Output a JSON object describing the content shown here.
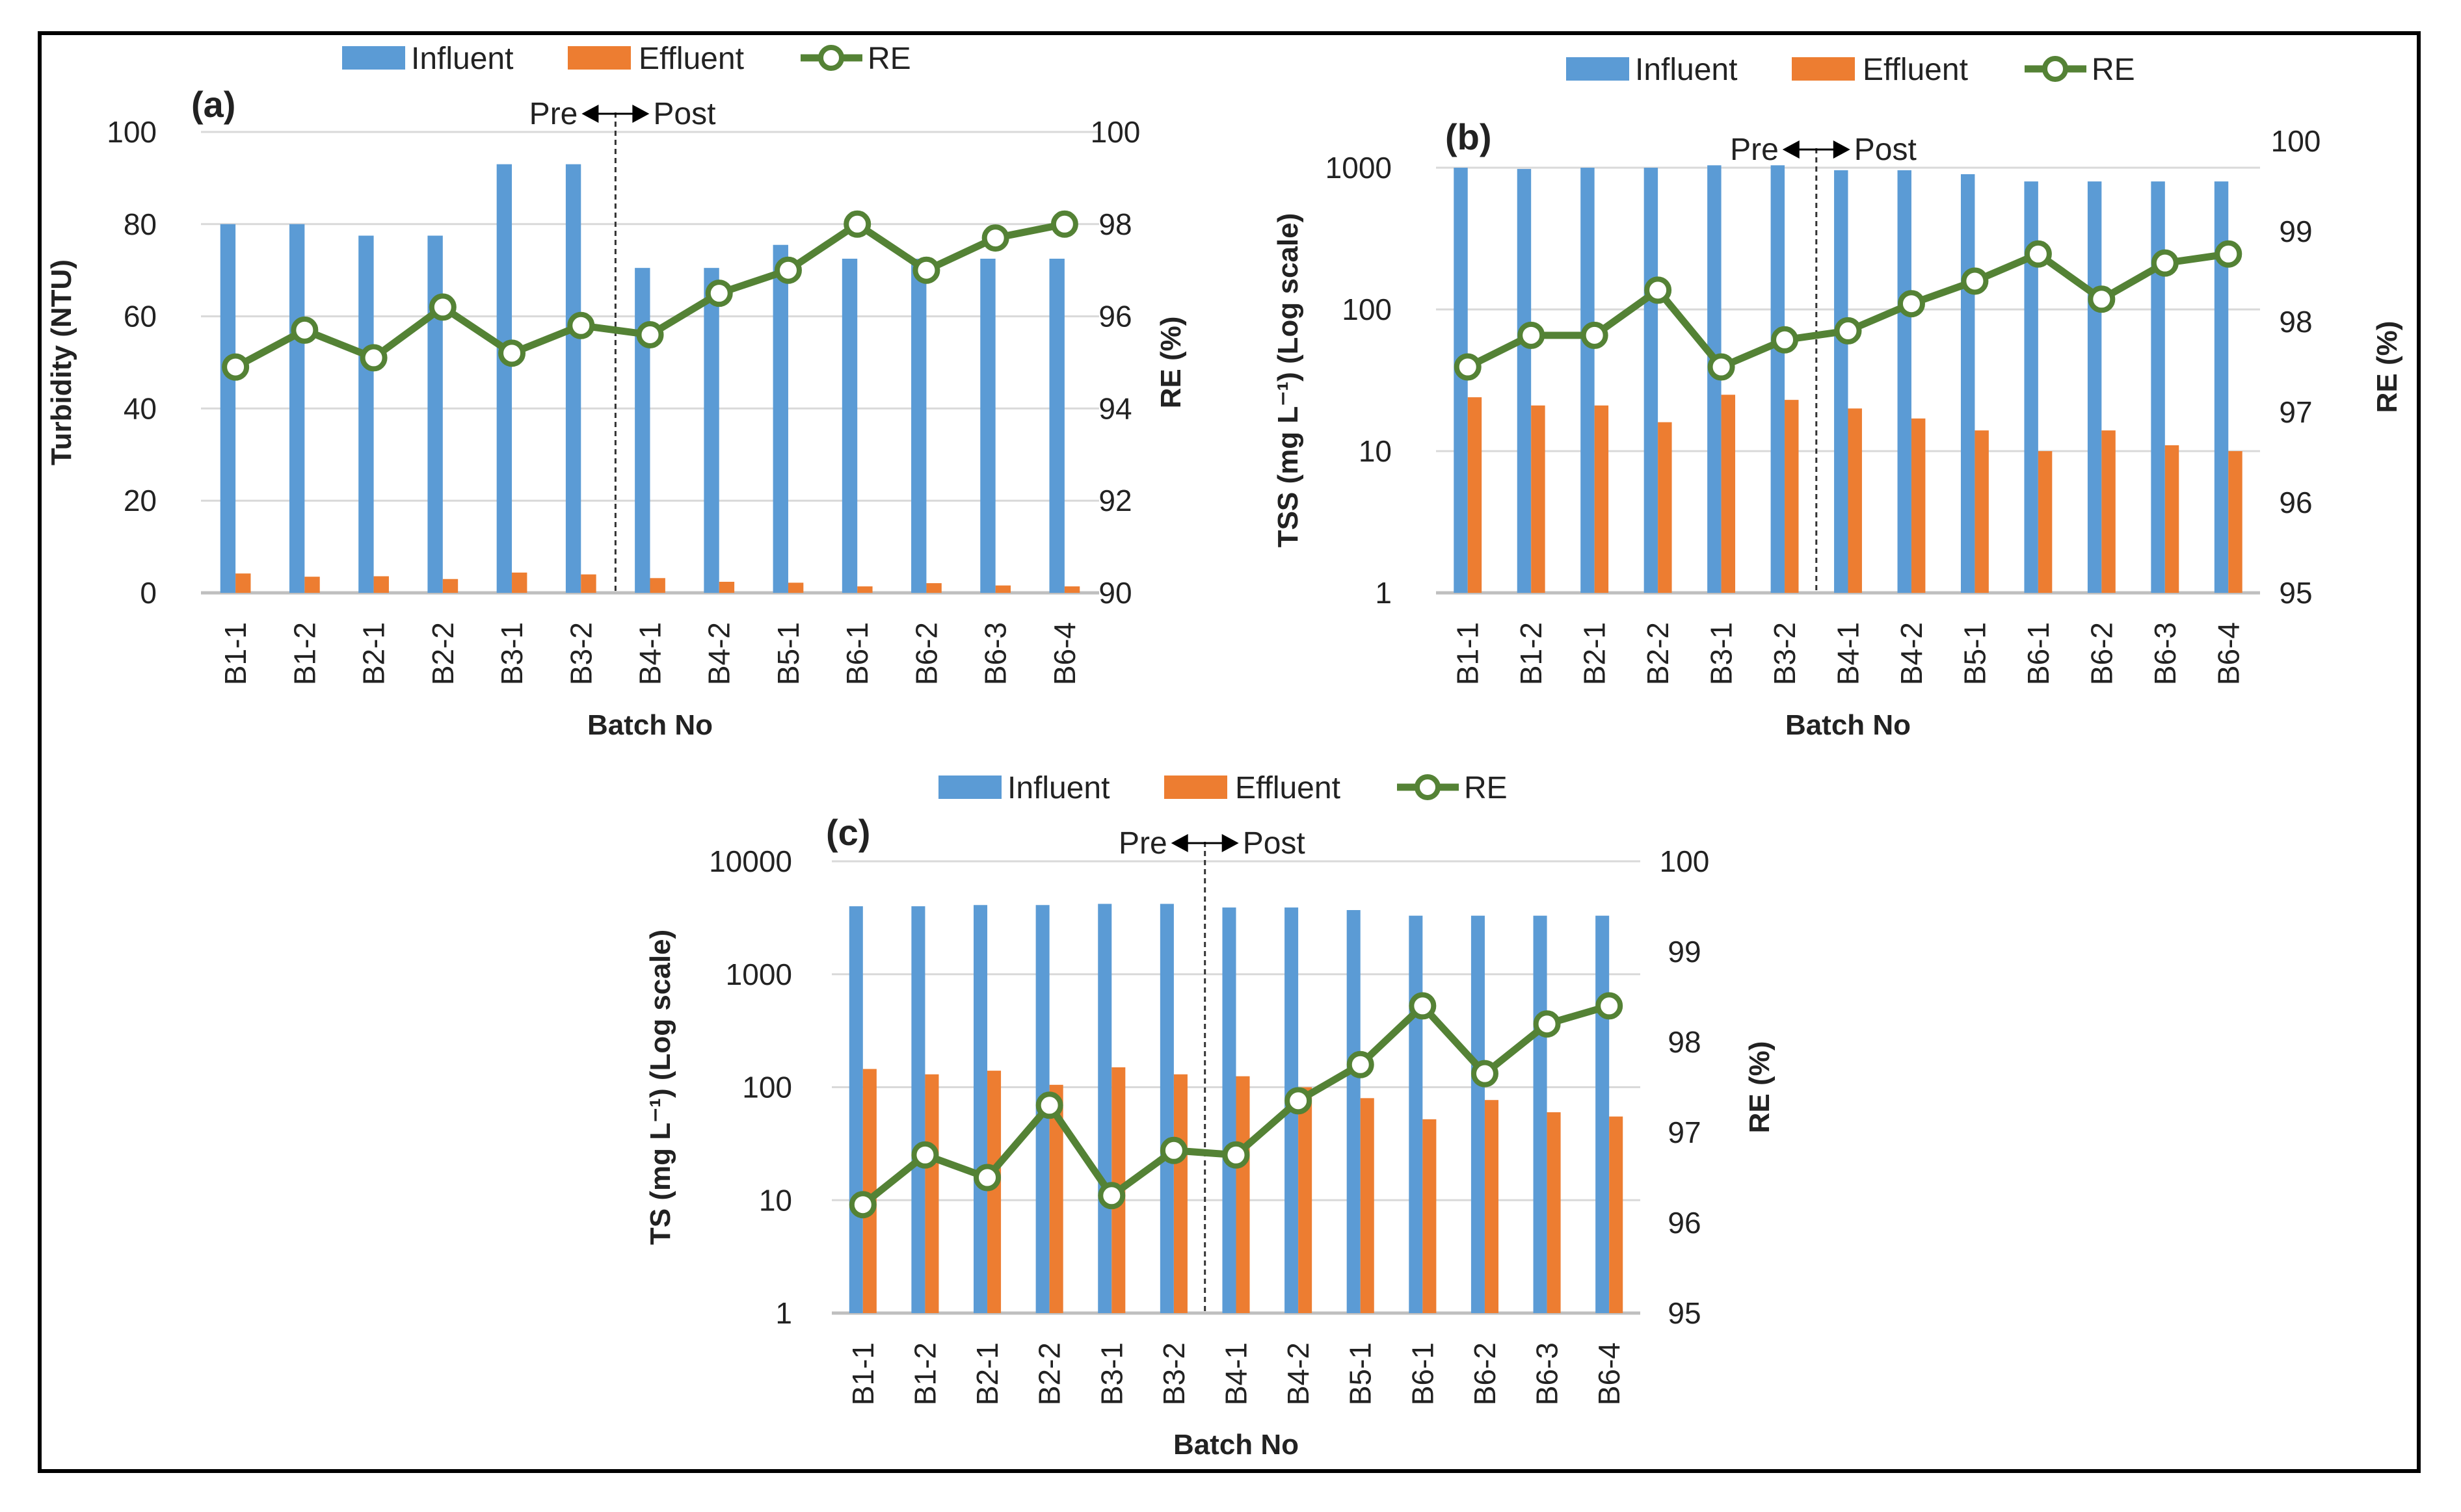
{
  "colors": {
    "influent": "#5B9BD5",
    "effluent": "#ED7D31",
    "re": "#548235",
    "grid": "#D9D9D9"
  },
  "legend": {
    "influent": "Influent",
    "effluent": "Effluent",
    "re": "RE"
  },
  "annotation": {
    "pre": "Pre",
    "post": "Post"
  },
  "chart_data": [
    {
      "type": "bar+line",
      "panel_label": "(a)",
      "categories": [
        "B1-1",
        "B1-2",
        "B2-1",
        "B2-2",
        "B3-1",
        "B3-2",
        "B4-1",
        "B4-2",
        "B5-1",
        "B6-1",
        "B6-2",
        "B6-3",
        "B6-4"
      ],
      "divider_after": "B3-2",
      "xlabel": "Batch No",
      "ylabel": "Turbidity (NTU)",
      "ylabel_right": "RE (%)",
      "yscale": "linear",
      "ylim": [
        0,
        100
      ],
      "yticks": [
        "0",
        "20",
        "40",
        "60",
        "80",
        "100"
      ],
      "ylim_right": [
        90,
        100
      ],
      "yticks_right": [
        "90",
        "92",
        "94",
        "96",
        "98",
        "100"
      ],
      "series": [
        {
          "name": "Influent",
          "axis": "left",
          "kind": "bar",
          "values": [
            80,
            80,
            77.5,
            77.5,
            93,
            93,
            70.5,
            70.5,
            75.5,
            72.5,
            72.5,
            72.5,
            72.5
          ]
        },
        {
          "name": "Effluent",
          "axis": "left",
          "kind": "bar",
          "values": [
            4.2,
            3.5,
            3.6,
            3.0,
            4.4,
            4.0,
            3.2,
            2.4,
            2.2,
            1.4,
            2.1,
            1.6,
            1.4
          ]
        },
        {
          "name": "RE",
          "axis": "right",
          "kind": "line",
          "values": [
            94.9,
            95.7,
            95.1,
            96.2,
            95.2,
            95.8,
            95.6,
            96.5,
            97.0,
            98.0,
            97.0,
            97.7,
            98.0
          ]
        }
      ]
    },
    {
      "type": "bar+line",
      "panel_label": "(b)",
      "categories": [
        "B1-1",
        "B1-2",
        "B2-1",
        "B2-2",
        "B3-1",
        "B3-2",
        "B4-1",
        "B4-2",
        "B5-1",
        "B6-1",
        "B6-2",
        "B6-3",
        "B6-4"
      ],
      "divider_after": "B3-2",
      "xlabel": "Batch No",
      "ylabel": "TSS (mg L⁻¹) (Log scale)",
      "ylabel_right": "RE (%)",
      "yscale": "log",
      "ylim": [
        1,
        1000
      ],
      "yticks": [
        "1",
        "10",
        "100",
        "1000"
      ],
      "ylim_right": [
        95,
        100
      ],
      "yticks_right": [
        "95",
        "96",
        "97",
        "98",
        "99",
        "100"
      ],
      "series": [
        {
          "name": "Influent",
          "axis": "left",
          "kind": "bar",
          "values": [
            1000,
            980,
            1000,
            1000,
            1040,
            1040,
            960,
            960,
            900,
            800,
            800,
            800,
            800
          ]
        },
        {
          "name": "Effluent",
          "axis": "left",
          "kind": "bar",
          "values": [
            24,
            21,
            21,
            16,
            25,
            23,
            20,
            17,
            14,
            10,
            14,
            11,
            10
          ]
        },
        {
          "name": "RE",
          "axis": "right",
          "kind": "line",
          "values": [
            97.5,
            97.85,
            97.85,
            98.35,
            97.5,
            97.8,
            97.9,
            98.2,
            98.45,
            98.75,
            98.25,
            98.65,
            98.75
          ]
        }
      ]
    },
    {
      "type": "bar+line",
      "panel_label": "(c)",
      "categories": [
        "B1-1",
        "B1-2",
        "B2-1",
        "B2-2",
        "B3-1",
        "B3-2",
        "B4-1",
        "B4-2",
        "B5-1",
        "B6-1",
        "B6-2",
        "B6-3",
        "B6-4"
      ],
      "divider_after": "B3-2",
      "xlabel": "Batch No",
      "ylabel": "TS (mg L⁻¹) (Log scale)",
      "ylabel_right": "RE (%)",
      "yscale": "log",
      "ylim": [
        1,
        10000
      ],
      "yticks": [
        "1",
        "10",
        "100",
        "1000",
        "10000"
      ],
      "ylim_right": [
        95,
        100
      ],
      "yticks_right": [
        "95",
        "96",
        "97",
        "98",
        "99",
        "100"
      ],
      "series": [
        {
          "name": "Influent",
          "axis": "left",
          "kind": "bar",
          "values": [
            4000,
            4000,
            4100,
            4100,
            4200,
            4200,
            3900,
            3900,
            3700,
            3300,
            3300,
            3300,
            3300
          ]
        },
        {
          "name": "Effluent",
          "axis": "left",
          "kind": "bar",
          "values": [
            145,
            130,
            140,
            105,
            150,
            130,
            125,
            100,
            80,
            52,
            77,
            60,
            55
          ]
        },
        {
          "name": "RE",
          "axis": "right",
          "kind": "line",
          "values": [
            96.2,
            96.75,
            96.5,
            97.3,
            96.3,
            96.8,
            96.75,
            97.35,
            97.75,
            98.4,
            97.65,
            98.2,
            98.4
          ]
        }
      ]
    }
  ]
}
